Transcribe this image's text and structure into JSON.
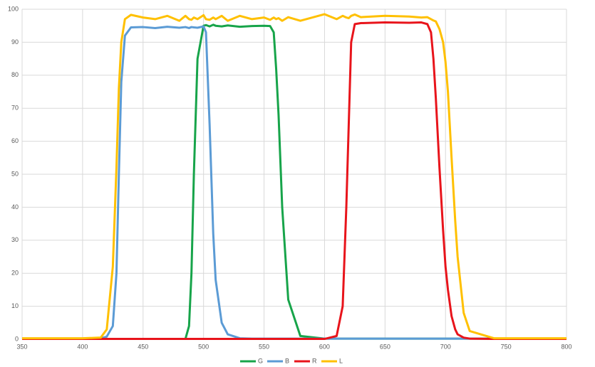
{
  "chart_data": {
    "type": "line",
    "x": [
      350,
      400,
      415,
      420,
      425,
      428,
      430,
      432,
      435,
      440,
      450,
      460,
      470,
      480,
      485,
      488,
      490,
      492,
      495,
      500,
      502,
      505,
      508,
      510,
      515,
      520,
      530,
      540,
      550,
      555,
      558,
      560,
      562,
      565,
      570,
      580,
      600,
      610,
      615,
      618,
      620,
      622,
      625,
      630,
      650,
      670,
      680,
      685,
      688,
      690,
      692,
      695,
      698,
      700,
      702,
      705,
      708,
      710,
      715,
      720,
      740,
      800
    ],
    "series": [
      {
        "name": "G",
        "color": "#17a44a",
        "values": [
          0.1,
          0.1,
          0.1,
          0.1,
          0.1,
          0.1,
          0.1,
          0.1,
          0.1,
          0.1,
          0.1,
          0.1,
          0.1,
          0.1,
          0.1,
          4,
          20,
          50,
          85,
          95,
          95.2,
          94.8,
          95.3,
          95,
          94.8,
          95.1,
          94.7,
          94.9,
          95,
          94.9,
          93,
          82,
          68,
          40,
          12,
          1,
          0.2,
          0.2,
          0.2,
          0.2,
          0.2,
          0.2,
          0.2,
          0.2,
          0.2,
          0.2,
          0.2,
          0.2,
          0.2,
          0.2,
          0.2,
          0.2,
          0.2,
          0.2,
          0.2,
          0.2,
          0.2,
          0.2,
          0.2,
          0.2,
          0.2,
          0.2
        ]
      },
      {
        "name": "B",
        "color": "#5b9bd5",
        "values": [
          0.2,
          0.2,
          0.3,
          0.8,
          4,
          20,
          50,
          78,
          92,
          94.5,
          94.6,
          94.3,
          94.7,
          94.4,
          94.6,
          94.3,
          94.6,
          94.5,
          94.4,
          94.8,
          93,
          65,
          32,
          18,
          5,
          1.5,
          0.3,
          0.2,
          0.2,
          0.2,
          0.2,
          0.2,
          0.2,
          0.2,
          0.2,
          0.2,
          0.2,
          0.2,
          0.2,
          0.2,
          0.2,
          0.2,
          0.2,
          0.2,
          0.2,
          0.2,
          0.2,
          0.2,
          0.2,
          0.2,
          0.2,
          0.2,
          0.2,
          0.2,
          0.2,
          0.2,
          0.2,
          0.2,
          0.2,
          0.2,
          0.2,
          0.2
        ]
      },
      {
        "name": "R",
        "color": "#e8141b",
        "values": [
          0.1,
          0.1,
          0.1,
          0.1,
          0.1,
          0.1,
          0.1,
          0.1,
          0.1,
          0.1,
          0.1,
          0.1,
          0.1,
          0.1,
          0.1,
          0.1,
          0.1,
          0.1,
          0.1,
          0.1,
          0.1,
          0.1,
          0.1,
          0.1,
          0.1,
          0.1,
          0.1,
          0.1,
          0.1,
          0.1,
          0.1,
          0.1,
          0.1,
          0.1,
          0.1,
          0.1,
          0.1,
          1,
          10,
          40,
          65,
          90,
          95.5,
          95.8,
          96,
          95.9,
          96,
          95.5,
          93,
          85,
          73,
          52,
          33,
          22,
          15,
          7,
          3,
          1.5,
          0.5,
          0.2,
          0.1,
          0.1
        ]
      },
      {
        "name": "L",
        "color": "#ffc000",
        "values": [
          0.3,
          0.3,
          0.5,
          3,
          22,
          52,
          76,
          90,
          97,
          98.3,
          97.5,
          97,
          98,
          96.5,
          98,
          97,
          96.8,
          97.5,
          97,
          98.2,
          97,
          96.8,
          97.5,
          97,
          98,
          96.5,
          98,
          97,
          97.5,
          96.8,
          97.5,
          97,
          97.3,
          96.5,
          97.6,
          96.5,
          98.5,
          97,
          98,
          97.5,
          97.3,
          98,
          98.4,
          97.6,
          98,
          97.8,
          97.5,
          97.6,
          97,
          96.6,
          96.3,
          94,
          90,
          84,
          75,
          55,
          36,
          25,
          8,
          2.5,
          0.3,
          0.3
        ]
      }
    ],
    "xlim": [
      350,
      800
    ],
    "xticks": [
      350,
      400,
      450,
      500,
      550,
      600,
      650,
      700,
      750,
      800
    ],
    "ylim": [
      0,
      100
    ],
    "yticks": [
      0,
      10,
      20,
      30,
      40,
      50,
      60,
      70,
      80,
      90,
      100
    ],
    "grid": true,
    "legend": "bottom"
  }
}
